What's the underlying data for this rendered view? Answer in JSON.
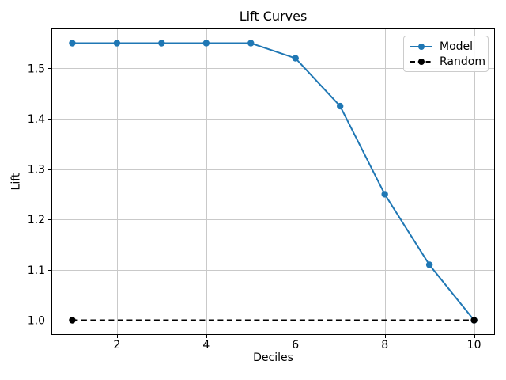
{
  "chart_data": {
    "type": "line",
    "title": "Lift Curves",
    "xlabel": "Deciles",
    "ylabel": "Lift",
    "series": [
      {
        "name": "Model",
        "x": [
          1,
          2,
          3,
          4,
          5,
          6,
          7,
          8,
          9,
          10
        ],
        "values": [
          1.55,
          1.55,
          1.55,
          1.55,
          1.55,
          1.52,
          1.425,
          1.25,
          1.11,
          1.0
        ],
        "color": "#1f77b4",
        "line_style": "solid",
        "marker": "circle"
      },
      {
        "name": "Random",
        "x": [
          1,
          10
        ],
        "values": [
          1.0,
          1.0
        ],
        "color": "#000000",
        "line_style": "dashed",
        "marker": "circle"
      }
    ],
    "xlim": [
      0.55,
      10.45
    ],
    "ylim": [
      0.9725,
      1.5775
    ],
    "xticks": {
      "values": [
        2,
        4,
        6,
        8,
        10
      ],
      "labels": [
        "2",
        "4",
        "6",
        "8",
        "10"
      ]
    },
    "yticks": {
      "values": [
        1.0,
        1.1,
        1.2,
        1.3,
        1.4,
        1.5
      ],
      "labels": [
        "1.0",
        "1.1",
        "1.2",
        "1.3",
        "1.4",
        "1.5"
      ]
    },
    "grid": true,
    "legend": {
      "position": "upper right"
    },
    "colors": {
      "background": "#ffffff",
      "grid": "#c9c9c9",
      "spine": "#000000",
      "text": "#000000",
      "model_line": "#1f77b4",
      "random_line": "#000000",
      "legend_border": "#cccccc",
      "legend_background": "#ffffff"
    }
  }
}
